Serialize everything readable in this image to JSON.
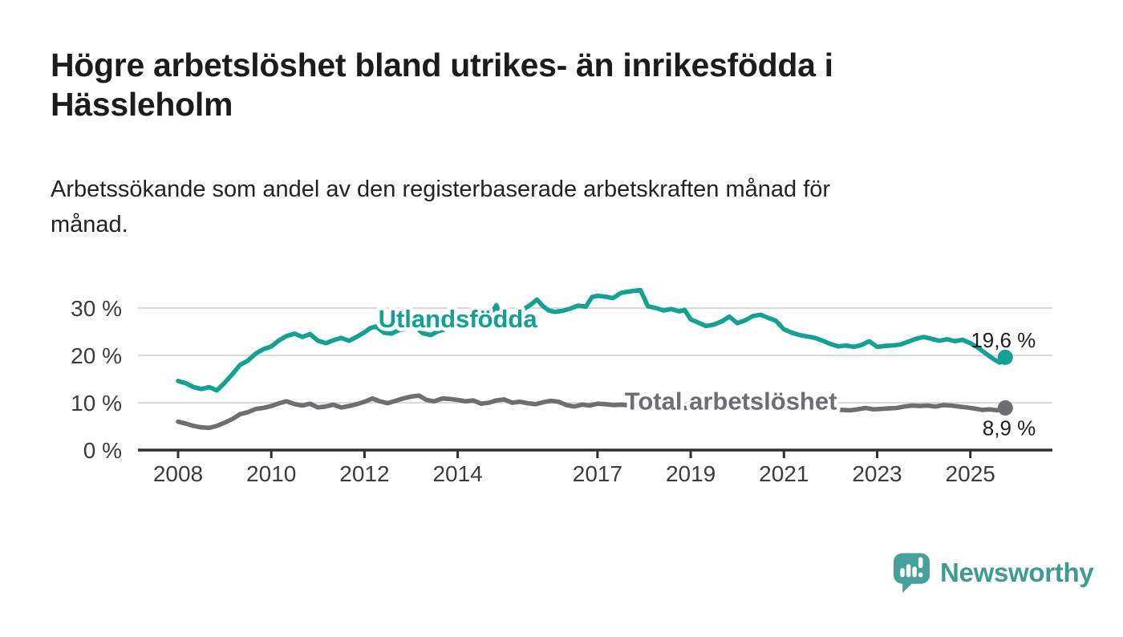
{
  "header": {
    "title_lines": [
      "Högre arbetslöshet bland utrikes- än inrikesfödda i",
      "Hässleholm"
    ],
    "subtitle_lines": [
      "Arbetssökande som andel av den registerbaserade arbetskraften månad för",
      "månad."
    ]
  },
  "footer": {
    "brand": "Newsworthy",
    "icon": "newsworthy-speech-bubble-bar-chart-icon",
    "icon_color": "#47a09b",
    "text_color": "#3d9b94"
  },
  "chart_data": {
    "type": "line",
    "title": "Högre arbetslöshet bland utrikes- än inrikesfödda i Hässleholm",
    "subtitle": "Arbetssökande som andel av den registerbaserade arbetskraften månad för månad.",
    "unit": "%",
    "grid": "horizontal-only",
    "legend_position": "inline-labels-on-lines",
    "x_ticks": [
      2008,
      2010,
      2012,
      2014,
      2017,
      2019,
      2021,
      2023,
      2025
    ],
    "y_ticks": [
      0,
      10,
      20,
      30
    ],
    "y_tick_suffix": " %",
    "x_range": [
      2008,
      2025.75
    ],
    "y_range": [
      0,
      34.5
    ],
    "colors": {
      "grid": "#dadada",
      "axis_line": "#303030",
      "axis_text": "#3c3c3c",
      "value_text": "#1e1e1e",
      "background": "#ffffff"
    },
    "series": [
      {
        "name": "Utlandsfödda",
        "slug": "utlandsfodda",
        "color": "#13a095",
        "line_label_pos": [
          2014.0,
          25.9
        ],
        "end_label": "19,6 %",
        "end_value": 19.6,
        "end_label_side": "above",
        "points": [
          [
            2008.0,
            14.6
          ],
          [
            2008.17,
            14.1
          ],
          [
            2008.33,
            13.3
          ],
          [
            2008.5,
            12.9
          ],
          [
            2008.67,
            13.3
          ],
          [
            2008.83,
            12.6
          ],
          [
            2009.0,
            14.2
          ],
          [
            2009.17,
            16.1
          ],
          [
            2009.33,
            18.0
          ],
          [
            2009.5,
            18.9
          ],
          [
            2009.67,
            20.4
          ],
          [
            2009.83,
            21.3
          ],
          [
            2010.0,
            21.9
          ],
          [
            2010.17,
            23.2
          ],
          [
            2010.33,
            24.1
          ],
          [
            2010.5,
            24.6
          ],
          [
            2010.67,
            23.9
          ],
          [
            2010.83,
            24.5
          ],
          [
            2011.0,
            23.1
          ],
          [
            2011.17,
            22.6
          ],
          [
            2011.33,
            23.2
          ],
          [
            2011.5,
            23.7
          ],
          [
            2011.67,
            23.1
          ],
          [
            2011.83,
            23.9
          ],
          [
            2012.0,
            24.9
          ],
          [
            2012.13,
            25.8
          ],
          [
            2012.25,
            26.1
          ],
          [
            2012.42,
            24.8
          ],
          [
            2012.58,
            24.6
          ],
          [
            2012.75,
            25.4
          ],
          [
            2012.92,
            25.7
          ],
          [
            2013.08,
            26.1
          ],
          [
            2013.25,
            24.7
          ],
          [
            2013.42,
            24.3
          ],
          [
            2013.58,
            25.1
          ],
          [
            2013.75,
            25.6
          ],
          [
            2013.92,
            25.8
          ],
          [
            2014.08,
            26.3
          ],
          [
            2014.25,
            26.7
          ],
          [
            2014.42,
            27.2
          ],
          [
            2014.58,
            27.8
          ],
          [
            2014.75,
            29.3
          ],
          [
            2014.83,
            30.6
          ],
          [
            2014.92,
            28.4
          ],
          [
            2015.08,
            28.6
          ],
          [
            2015.25,
            29.1
          ],
          [
            2015.42,
            29.8
          ],
          [
            2015.58,
            30.8
          ],
          [
            2015.7,
            31.8
          ],
          [
            2015.83,
            30.4
          ],
          [
            2015.95,
            29.5
          ],
          [
            2016.08,
            29.2
          ],
          [
            2016.25,
            29.4
          ],
          [
            2016.42,
            29.9
          ],
          [
            2016.58,
            30.5
          ],
          [
            2016.75,
            30.3
          ],
          [
            2016.88,
            32.3
          ],
          [
            2017.0,
            32.6
          ],
          [
            2017.17,
            32.4
          ],
          [
            2017.33,
            32.1
          ],
          [
            2017.5,
            33.2
          ],
          [
            2017.67,
            33.5
          ],
          [
            2017.83,
            33.7
          ],
          [
            2017.92,
            33.8
          ],
          [
            2018.08,
            30.4
          ],
          [
            2018.25,
            30.0
          ],
          [
            2018.42,
            29.5
          ],
          [
            2018.58,
            29.8
          ],
          [
            2018.75,
            29.3
          ],
          [
            2018.87,
            29.6
          ],
          [
            2019.0,
            27.6
          ],
          [
            2019.17,
            26.9
          ],
          [
            2019.33,
            26.2
          ],
          [
            2019.5,
            26.5
          ],
          [
            2019.67,
            27.2
          ],
          [
            2019.83,
            28.2
          ],
          [
            2020.0,
            26.8
          ],
          [
            2020.17,
            27.4
          ],
          [
            2020.33,
            28.3
          ],
          [
            2020.5,
            28.6
          ],
          [
            2020.67,
            27.9
          ],
          [
            2020.83,
            27.3
          ],
          [
            2021.0,
            25.5
          ],
          [
            2021.17,
            24.8
          ],
          [
            2021.33,
            24.3
          ],
          [
            2021.5,
            24.0
          ],
          [
            2021.67,
            23.7
          ],
          [
            2021.83,
            23.1
          ],
          [
            2022.0,
            22.4
          ],
          [
            2022.17,
            21.9
          ],
          [
            2022.33,
            22.1
          ],
          [
            2022.5,
            21.8
          ],
          [
            2022.67,
            22.2
          ],
          [
            2022.83,
            23.0
          ],
          [
            2023.0,
            21.8
          ],
          [
            2023.17,
            22.0
          ],
          [
            2023.33,
            22.1
          ],
          [
            2023.5,
            22.3
          ],
          [
            2023.67,
            22.9
          ],
          [
            2023.83,
            23.5
          ],
          [
            2024.0,
            23.9
          ],
          [
            2024.17,
            23.5
          ],
          [
            2024.33,
            23.1
          ],
          [
            2024.5,
            23.4
          ],
          [
            2024.67,
            23.0
          ],
          [
            2024.83,
            23.3
          ],
          [
            2025.0,
            22.6
          ],
          [
            2025.17,
            21.6
          ],
          [
            2025.33,
            20.4
          ],
          [
            2025.5,
            19.2
          ],
          [
            2025.63,
            18.5
          ],
          [
            2025.75,
            19.6
          ]
        ]
      },
      {
        "name": "Total arbetslöshet",
        "slug": "total-arbetsloshet",
        "color": "#6d6d72",
        "line_label_pos": [
          2019.86,
          8.6
        ],
        "end_label": "8,9 %",
        "end_value": 8.9,
        "end_label_side": "below",
        "points": [
          [
            2008.0,
            6.0
          ],
          [
            2008.17,
            5.6
          ],
          [
            2008.33,
            5.1
          ],
          [
            2008.5,
            4.8
          ],
          [
            2008.67,
            4.7
          ],
          [
            2008.83,
            5.1
          ],
          [
            2009.0,
            5.8
          ],
          [
            2009.17,
            6.6
          ],
          [
            2009.33,
            7.6
          ],
          [
            2009.5,
            8.0
          ],
          [
            2009.67,
            8.7
          ],
          [
            2009.83,
            8.9
          ],
          [
            2010.0,
            9.3
          ],
          [
            2010.17,
            9.9
          ],
          [
            2010.33,
            10.3
          ],
          [
            2010.5,
            9.7
          ],
          [
            2010.67,
            9.4
          ],
          [
            2010.83,
            9.8
          ],
          [
            2011.0,
            9.0
          ],
          [
            2011.17,
            9.2
          ],
          [
            2011.33,
            9.6
          ],
          [
            2011.5,
            9.0
          ],
          [
            2011.67,
            9.3
          ],
          [
            2011.83,
            9.7
          ],
          [
            2012.0,
            10.2
          ],
          [
            2012.17,
            10.9
          ],
          [
            2012.33,
            10.3
          ],
          [
            2012.5,
            9.9
          ],
          [
            2012.67,
            10.4
          ],
          [
            2012.83,
            10.9
          ],
          [
            2013.0,
            11.3
          ],
          [
            2013.17,
            11.5
          ],
          [
            2013.33,
            10.6
          ],
          [
            2013.5,
            10.3
          ],
          [
            2013.67,
            10.9
          ],
          [
            2013.83,
            10.8
          ],
          [
            2014.0,
            10.6
          ],
          [
            2014.17,
            10.3
          ],
          [
            2014.33,
            10.5
          ],
          [
            2014.5,
            9.8
          ],
          [
            2014.67,
            10.0
          ],
          [
            2014.83,
            10.5
          ],
          [
            2015.0,
            10.7
          ],
          [
            2015.17,
            10.0
          ],
          [
            2015.33,
            10.2
          ],
          [
            2015.5,
            9.9
          ],
          [
            2015.67,
            9.7
          ],
          [
            2015.83,
            10.1
          ],
          [
            2016.0,
            10.4
          ],
          [
            2016.17,
            10.2
          ],
          [
            2016.33,
            9.5
          ],
          [
            2016.5,
            9.2
          ],
          [
            2016.67,
            9.6
          ],
          [
            2016.83,
            9.4
          ],
          [
            2017.0,
            9.8
          ],
          [
            2017.17,
            9.7
          ],
          [
            2017.33,
            9.5
          ],
          [
            2017.5,
            9.6
          ],
          [
            2017.75,
            9.4
          ],
          [
            2018.0,
            9.3
          ],
          [
            2018.25,
            9.1
          ],
          [
            2018.5,
            9.0
          ],
          [
            2018.75,
            8.9
          ],
          [
            2019.0,
            8.9
          ],
          [
            2019.25,
            8.8
          ],
          [
            2019.5,
            9.0
          ],
          [
            2019.75,
            9.2
          ],
          [
            2020.0,
            9.4
          ],
          [
            2020.25,
            10.2
          ],
          [
            2020.5,
            10.6
          ],
          [
            2020.75,
            10.3
          ],
          [
            2021.0,
            10.0
          ],
          [
            2021.25,
            9.6
          ],
          [
            2021.5,
            9.2
          ],
          [
            2021.75,
            8.9
          ],
          [
            2022.0,
            8.7
          ],
          [
            2022.25,
            8.5
          ],
          [
            2022.42,
            8.4
          ],
          [
            2022.58,
            8.6
          ],
          [
            2022.75,
            8.9
          ],
          [
            2022.92,
            8.6
          ],
          [
            2023.08,
            8.7
          ],
          [
            2023.25,
            8.8
          ],
          [
            2023.42,
            8.9
          ],
          [
            2023.58,
            9.2
          ],
          [
            2023.75,
            9.4
          ],
          [
            2023.92,
            9.3
          ],
          [
            2024.08,
            9.4
          ],
          [
            2024.25,
            9.2
          ],
          [
            2024.42,
            9.5
          ],
          [
            2024.58,
            9.4
          ],
          [
            2024.75,
            9.2
          ],
          [
            2024.92,
            9.0
          ],
          [
            2025.08,
            8.8
          ],
          [
            2025.25,
            8.5
          ],
          [
            2025.42,
            8.6
          ],
          [
            2025.58,
            8.4
          ],
          [
            2025.75,
            8.9
          ]
        ]
      }
    ]
  }
}
